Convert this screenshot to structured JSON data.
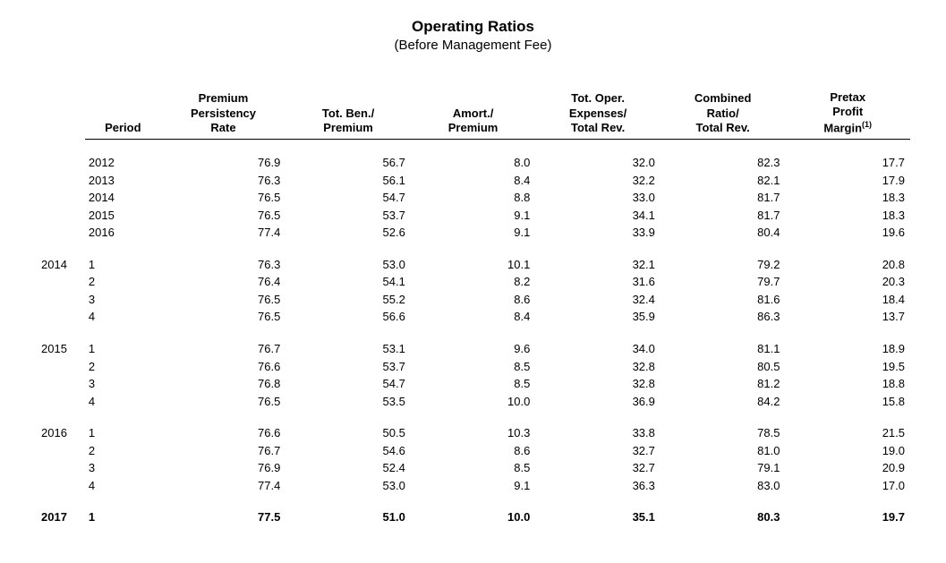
{
  "title": "Operating Ratios",
  "subtitle": "(Before Management Fee)",
  "headers": {
    "period": "Period",
    "col1": "Premium\nPersistency\nRate",
    "col2": "Tot. Ben./\nPremium",
    "col3": "Amort./\nPremium",
    "col4": "Tot. Oper.\nExpenses/\nTotal Rev.",
    "col5": "Combined\nRatio/\nTotal Rev.",
    "col6": "Pretax\nProfit\nMargin",
    "col6_sup": "(1)"
  },
  "blocks": [
    {
      "year_label": "",
      "bold": false,
      "rows": [
        {
          "period": "2012",
          "c1": "76.9",
          "c2": "56.7",
          "c3": "8.0",
          "c4": "32.0",
          "c5": "82.3",
          "c6": "17.7"
        },
        {
          "period": "2013",
          "c1": "76.3",
          "c2": "56.1",
          "c3": "8.4",
          "c4": "32.2",
          "c5": "82.1",
          "c6": "17.9"
        },
        {
          "period": "2014",
          "c1": "76.5",
          "c2": "54.7",
          "c3": "8.8",
          "c4": "33.0",
          "c5": "81.7",
          "c6": "18.3"
        },
        {
          "period": "2015",
          "c1": "76.5",
          "c2": "53.7",
          "c3": "9.1",
          "c4": "34.1",
          "c5": "81.7",
          "c6": "18.3"
        },
        {
          "period": "2016",
          "c1": "77.4",
          "c2": "52.6",
          "c3": "9.1",
          "c4": "33.9",
          "c5": "80.4",
          "c6": "19.6"
        }
      ]
    },
    {
      "year_label": "2014",
      "bold": false,
      "rows": [
        {
          "period": "1",
          "c1": "76.3",
          "c2": "53.0",
          "c3": "10.1",
          "c4": "32.1",
          "c5": "79.2",
          "c6": "20.8"
        },
        {
          "period": "2",
          "c1": "76.4",
          "c2": "54.1",
          "c3": "8.2",
          "c4": "31.6",
          "c5": "79.7",
          "c6": "20.3"
        },
        {
          "period": "3",
          "c1": "76.5",
          "c2": "55.2",
          "c3": "8.6",
          "c4": "32.4",
          "c5": "81.6",
          "c6": "18.4"
        },
        {
          "period": "4",
          "c1": "76.5",
          "c2": "56.6",
          "c3": "8.4",
          "c4": "35.9",
          "c5": "86.3",
          "c6": "13.7"
        }
      ]
    },
    {
      "year_label": "2015",
      "bold": false,
      "rows": [
        {
          "period": "1",
          "c1": "76.7",
          "c2": "53.1",
          "c3": "9.6",
          "c4": "34.0",
          "c5": "81.1",
          "c6": "18.9"
        },
        {
          "period": "2",
          "c1": "76.6",
          "c2": "53.7",
          "c3": "8.5",
          "c4": "32.8",
          "c5": "80.5",
          "c6": "19.5"
        },
        {
          "period": "3",
          "c1": "76.8",
          "c2": "54.7",
          "c3": "8.5",
          "c4": "32.8",
          "c5": "81.2",
          "c6": "18.8"
        },
        {
          "period": "4",
          "c1": "76.5",
          "c2": "53.5",
          "c3": "10.0",
          "c4": "36.9",
          "c5": "84.2",
          "c6": "15.8"
        }
      ]
    },
    {
      "year_label": "2016",
      "bold": false,
      "rows": [
        {
          "period": "1",
          "c1": "76.6",
          "c2": "50.5",
          "c3": "10.3",
          "c4": "33.8",
          "c5": "78.5",
          "c6": "21.5"
        },
        {
          "period": "2",
          "c1": "76.7",
          "c2": "54.6",
          "c3": "8.6",
          "c4": "32.7",
          "c5": "81.0",
          "c6": "19.0"
        },
        {
          "period": "3",
          "c1": "76.9",
          "c2": "52.4",
          "c3": "8.5",
          "c4": "32.7",
          "c5": "79.1",
          "c6": "20.9"
        },
        {
          "period": "4",
          "c1": "77.4",
          "c2": "53.0",
          "c3": "9.1",
          "c4": "36.3",
          "c5": "83.0",
          "c6": "17.0"
        }
      ]
    },
    {
      "year_label": "2017",
      "bold": true,
      "rows": [
        {
          "period": "1",
          "c1": "77.5",
          "c2": "51.0",
          "c3": "10.0",
          "c4": "35.1",
          "c5": "80.3",
          "c6": "19.7"
        }
      ]
    }
  ]
}
